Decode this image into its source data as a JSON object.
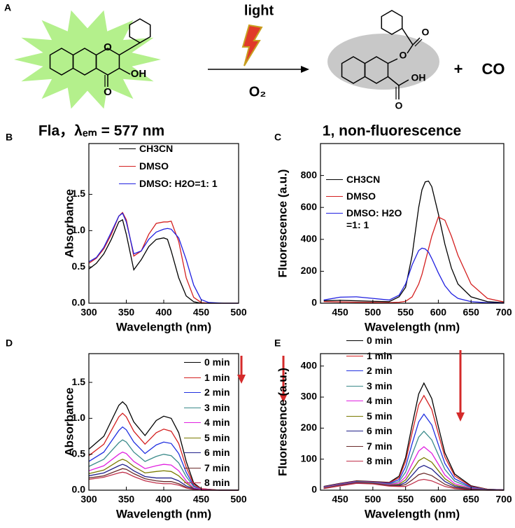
{
  "scheme": {
    "label": "A",
    "reactant_atoms": [
      "O",
      "OH",
      "O"
    ],
    "reactant_name": "Fla，λₑₘ = 577 nm",
    "condition_top": "light",
    "condition_bottom": "O₂",
    "product_atoms": [
      "O",
      "O",
      "O",
      "OH"
    ],
    "product_name": "1, non-fluorescence",
    "plus": "+",
    "byproduct": "CO"
  },
  "chart_data": [
    {
      "type": "line",
      "label": "B",
      "xlabel": "Wavelength (nm)",
      "ylabel": "Absorbance",
      "x": [
        300,
        310,
        320,
        330,
        340,
        345,
        350,
        360,
        370,
        380,
        390,
        400,
        405,
        410,
        420,
        430,
        440,
        450,
        460,
        480,
        500
      ],
      "xlim": [
        300,
        500
      ],
      "ylim": [
        0,
        2.2
      ],
      "xticks": [
        300,
        350,
        400,
        450,
        500
      ],
      "yticks": [
        {
          "value": 0,
          "label": "0.0"
        },
        0.5,
        {
          "value": 1,
          "label": "1.0"
        },
        1.5
      ],
      "series": [
        {
          "name": "CH3CN",
          "color": "#000000",
          "values": [
            0.47,
            0.55,
            0.68,
            0.88,
            1.12,
            1.15,
            0.95,
            0.46,
            0.6,
            0.78,
            0.88,
            0.9,
            0.88,
            0.72,
            0.35,
            0.1,
            0.02,
            0,
            0,
            0,
            0
          ]
        },
        {
          "name": "DMSO",
          "color": "#d42020",
          "values": [
            0.55,
            0.62,
            0.75,
            0.95,
            1.2,
            1.25,
            1.15,
            0.65,
            0.72,
            0.95,
            1.1,
            1.12,
            1.12,
            1.13,
            0.85,
            0.35,
            0.08,
            0.01,
            0,
            0,
            0
          ]
        },
        {
          "name": "DMSO: H2O=1: 1",
          "color": "#2020e0",
          "values": [
            0.57,
            0.63,
            0.77,
            0.98,
            1.2,
            1.24,
            1.12,
            0.68,
            0.72,
            0.88,
            0.98,
            1.02,
            1.03,
            1.02,
            0.9,
            0.6,
            0.25,
            0.05,
            0.01,
            0,
            0
          ]
        }
      ]
    },
    {
      "type": "line",
      "label": "C",
      "xlabel": "Wavelength (nm)",
      "ylabel": "Fluorescence (a.u.)",
      "x": [
        425,
        450,
        475,
        500,
        525,
        540,
        550,
        560,
        570,
        575,
        580,
        585,
        590,
        600,
        610,
        620,
        630,
        650,
        675,
        700
      ],
      "xlim": [
        420,
        700
      ],
      "ylim": [
        0,
        1000
      ],
      "xticks": [
        450,
        500,
        550,
        600,
        650,
        700
      ],
      "yticks": [
        0,
        200,
        400,
        600,
        800
      ],
      "series": [
        {
          "name": "CH3CN",
          "color": "#000000",
          "values": [
            15,
            18,
            15,
            12,
            10,
            40,
            100,
            300,
            600,
            710,
            760,
            765,
            730,
            560,
            370,
            220,
            120,
            40,
            10,
            3
          ]
        },
        {
          "name": "DMSO",
          "color": "#d42020",
          "values": [
            10,
            8,
            6,
            5,
            4,
            6,
            12,
            40,
            120,
            180,
            260,
            340,
            420,
            540,
            520,
            420,
            300,
            120,
            30,
            8
          ]
        },
        {
          "name": "DMSO: H2O\n=1: 1",
          "color": "#2020e0",
          "values": [
            20,
            38,
            40,
            30,
            20,
            50,
            120,
            240,
            330,
            345,
            340,
            320,
            280,
            190,
            110,
            60,
            30,
            10,
            3,
            1
          ]
        }
      ]
    },
    {
      "type": "line",
      "label": "D",
      "xlabel": "Wavelength (nm)",
      "ylabel": "Absorbance",
      "x": [
        300,
        320,
        340,
        345,
        350,
        360,
        375,
        390,
        400,
        410,
        420,
        430,
        440,
        450,
        475,
        500
      ],
      "xlim": [
        300,
        500
      ],
      "ylim": [
        0,
        1.9
      ],
      "xticks": [
        300,
        350,
        400,
        450,
        500
      ],
      "yticks": [
        {
          "value": 0,
          "label": "0.0"
        },
        0.5,
        {
          "value": 1,
          "label": "1.0"
        },
        1.5
      ],
      "series": [
        {
          "name": "0 min",
          "color": "#000000",
          "values": [
            0.57,
            0.75,
            1.18,
            1.23,
            1.18,
            0.95,
            0.76,
            0.97,
            1.03,
            1.0,
            0.8,
            0.4,
            0.1,
            0.02,
            0,
            0
          ]
        },
        {
          "name": "1 min",
          "color": "#d42020",
          "values": [
            0.48,
            0.64,
            1.02,
            1.07,
            1.02,
            0.82,
            0.64,
            0.8,
            0.85,
            0.82,
            0.65,
            0.32,
            0.08,
            0.02,
            0,
            0
          ]
        },
        {
          "name": "2 min",
          "color": "#2030e0",
          "values": [
            0.4,
            0.53,
            0.83,
            0.88,
            0.84,
            0.67,
            0.51,
            0.63,
            0.67,
            0.65,
            0.51,
            0.25,
            0.06,
            0.01,
            0,
            0
          ]
        },
        {
          "name": "3 min",
          "color": "#3a8a8a",
          "values": [
            0.33,
            0.43,
            0.66,
            0.7,
            0.67,
            0.53,
            0.4,
            0.47,
            0.5,
            0.48,
            0.38,
            0.19,
            0.05,
            0.01,
            0,
            0
          ]
        },
        {
          "name": "4 min",
          "color": "#e020e0",
          "values": [
            0.27,
            0.34,
            0.5,
            0.53,
            0.51,
            0.4,
            0.3,
            0.34,
            0.36,
            0.35,
            0.27,
            0.13,
            0.03,
            0.01,
            0,
            0
          ]
        },
        {
          "name": "5 min",
          "color": "#7a7a00",
          "values": [
            0.23,
            0.28,
            0.41,
            0.43,
            0.41,
            0.33,
            0.24,
            0.26,
            0.27,
            0.26,
            0.2,
            0.1,
            0.02,
            0,
            0,
            0
          ]
        },
        {
          "name": "6 min",
          "color": "#20208a",
          "values": [
            0.2,
            0.24,
            0.34,
            0.36,
            0.34,
            0.27,
            0.19,
            0.17,
            0.17,
            0.17,
            0.13,
            0.06,
            0.02,
            0,
            0,
            0
          ]
        },
        {
          "name": "7 min",
          "color": "#6a2a2a",
          "values": [
            0.17,
            0.2,
            0.28,
            0.3,
            0.29,
            0.23,
            0.16,
            0.13,
            0.12,
            0.12,
            0.09,
            0.04,
            0.01,
            0,
            0,
            0
          ]
        },
        {
          "name": "8 min",
          "color": "#c0304a",
          "values": [
            0.15,
            0.18,
            0.24,
            0.25,
            0.24,
            0.19,
            0.13,
            0.1,
            0.09,
            0.09,
            0.07,
            0.03,
            0.01,
            0,
            0,
            0
          ]
        }
      ]
    },
    {
      "type": "line",
      "label": "E",
      "xlabel": "Wavelength (nm)",
      "ylabel": "Fluorescence (a.u.)",
      "x": [
        425,
        450,
        475,
        500,
        525,
        540,
        550,
        560,
        570,
        578,
        590,
        600,
        610,
        625,
        650,
        675,
        700
      ],
      "xlim": [
        420,
        700
      ],
      "ylim": [
        0,
        440
      ],
      "xticks": [
        450,
        500,
        550,
        600,
        650,
        700
      ],
      "yticks": [
        0,
        100,
        200,
        300,
        400
      ],
      "series": [
        {
          "name": "0 min",
          "color": "#000000",
          "values": [
            12,
            22,
            30,
            28,
            25,
            45,
            105,
            210,
            310,
            345,
            295,
            205,
            120,
            52,
            14,
            3,
            1
          ]
        },
        {
          "name": "1 min",
          "color": "#d42020",
          "values": [
            11,
            21,
            29,
            27,
            24,
            40,
            93,
            185,
            275,
            305,
            260,
            182,
            107,
            46,
            12,
            3,
            1
          ]
        },
        {
          "name": "2 min",
          "color": "#2030e0",
          "values": [
            10,
            20,
            28,
            26,
            22,
            34,
            75,
            150,
            220,
            245,
            210,
            147,
            86,
            37,
            10,
            2,
            1
          ]
        },
        {
          "name": "3 min",
          "color": "#3a8a8a",
          "values": [
            9,
            19,
            27,
            25,
            20,
            28,
            58,
            115,
            171,
            190,
            162,
            114,
            67,
            29,
            8,
            2,
            0
          ]
        },
        {
          "name": "4 min",
          "color": "#e020e0",
          "values": [
            8,
            18,
            26,
            24,
            18,
            23,
            43,
            85,
            126,
            140,
            119,
            84,
            49,
            21,
            6,
            1,
            0
          ]
        },
        {
          "name": "5 min",
          "color": "#7a7a00",
          "values": [
            7,
            17,
            25,
            23,
            16,
            19,
            33,
            64,
            95,
            105,
            90,
            63,
            37,
            16,
            4,
            1,
            0
          ]
        },
        {
          "name": "6 min",
          "color": "#20208a",
          "values": [
            6,
            16,
            24,
            22,
            15,
            16,
            25,
            48,
            72,
            80,
            68,
            48,
            28,
            12,
            3,
            1,
            0
          ]
        },
        {
          "name": "7 min",
          "color": "#6a2a2a",
          "values": [
            6,
            15,
            23,
            21,
            14,
            14,
            18,
            33,
            50,
            55,
            47,
            33,
            19,
            8,
            2,
            0,
            0
          ]
        },
        {
          "name": "8 min",
          "color": "#c0304a",
          "values": [
            5,
            14,
            22,
            20,
            13,
            12,
            12,
            21,
            32,
            35,
            30,
            21,
            12,
            5,
            1,
            0,
            0
          ]
        }
      ]
    }
  ]
}
